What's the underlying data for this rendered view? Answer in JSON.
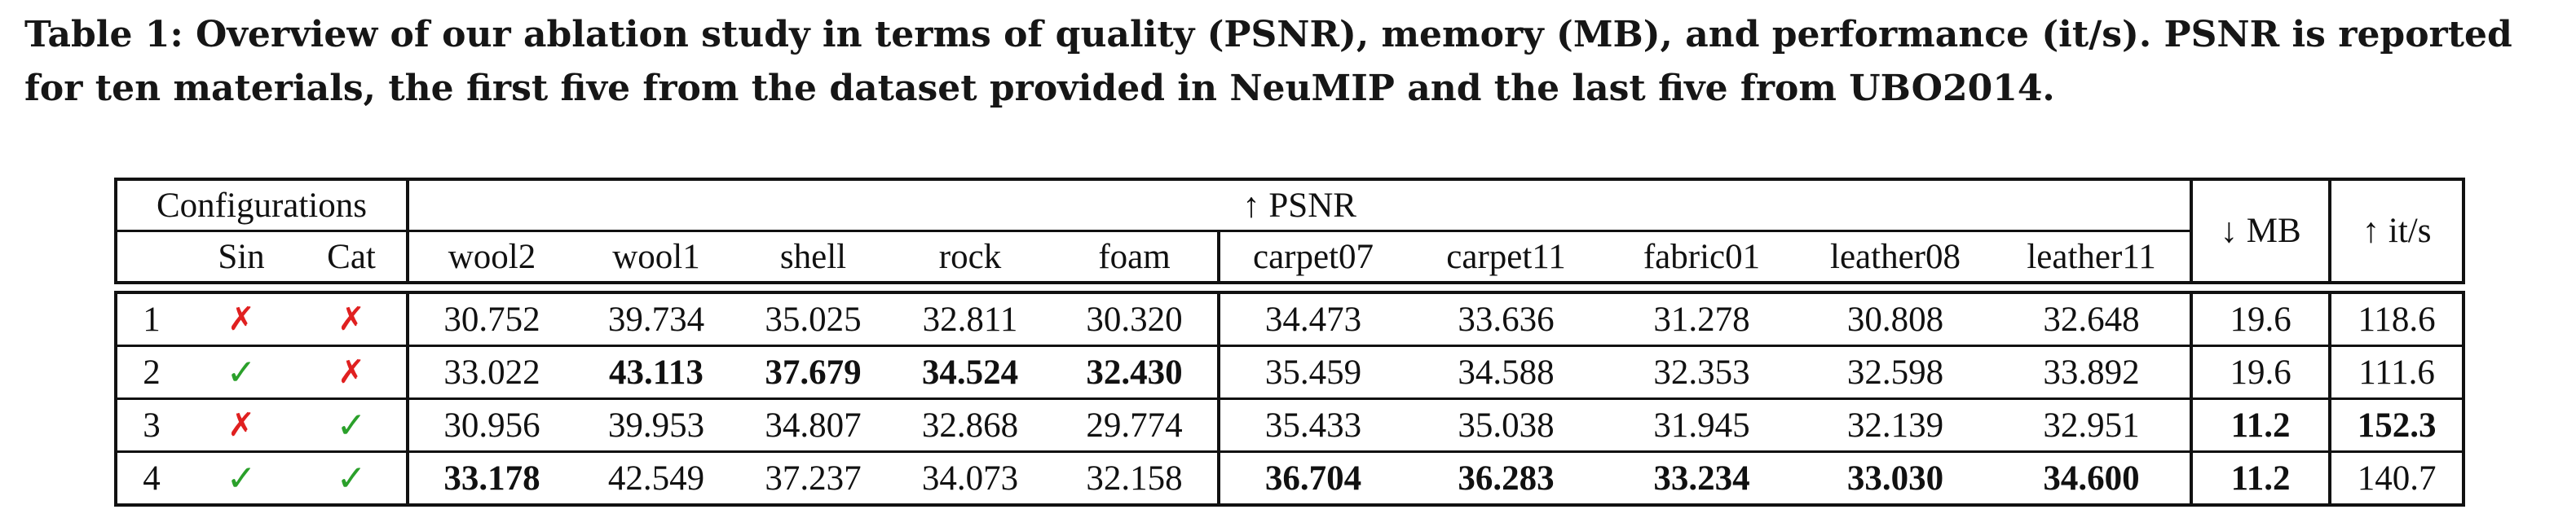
{
  "caption": "Table 1: Overview of our ablation study in terms of quality (PSNR), memory (MB), and performance (it/s). PSNR is reported for ten materials, the first five from the dataset provided in NeuMIP and the last five from UBO2014.",
  "header": {
    "configurations": "Configurations",
    "psnr": "↑ PSNR",
    "mb": "↓ MB",
    "its": "↑ it/s",
    "sin": "Sin",
    "cat": "Cat",
    "materials": [
      "wool2",
      "wool1",
      "shell",
      "rock",
      "foam",
      "carpet07",
      "carpet11",
      "fabric01",
      "leather08",
      "leather11"
    ]
  },
  "rows": [
    {
      "id": "1",
      "sin": "✗",
      "cat": "✗",
      "psnr": [
        "30.752",
        "39.734",
        "35.025",
        "32.811",
        "30.320",
        "34.473",
        "33.636",
        "31.278",
        "30.808",
        "32.648"
      ],
      "mb": "19.6",
      "its": "118.6"
    },
    {
      "id": "2",
      "sin": "✓",
      "cat": "✗",
      "psnr": [
        "33.022",
        "43.113",
        "37.679",
        "34.524",
        "32.430",
        "35.459",
        "34.588",
        "32.353",
        "32.598",
        "33.892"
      ],
      "mb": "19.6",
      "its": "111.6"
    },
    {
      "id": "3",
      "sin": "✗",
      "cat": "✓",
      "psnr": [
        "30.956",
        "39.953",
        "34.807",
        "32.868",
        "29.774",
        "35.433",
        "35.038",
        "31.945",
        "32.139",
        "32.951"
      ],
      "mb": "11.2",
      "its": "152.3"
    },
    {
      "id": "4",
      "sin": "✓",
      "cat": "✓",
      "psnr": [
        "33.178",
        "42.549",
        "37.237",
        "34.073",
        "32.158",
        "36.704",
        "36.283",
        "33.234",
        "33.030",
        "34.600"
      ],
      "mb": "11.2",
      "its": "140.7"
    }
  ],
  "colors": {
    "check": "#2aa02a",
    "cross": "#e02020"
  }
}
